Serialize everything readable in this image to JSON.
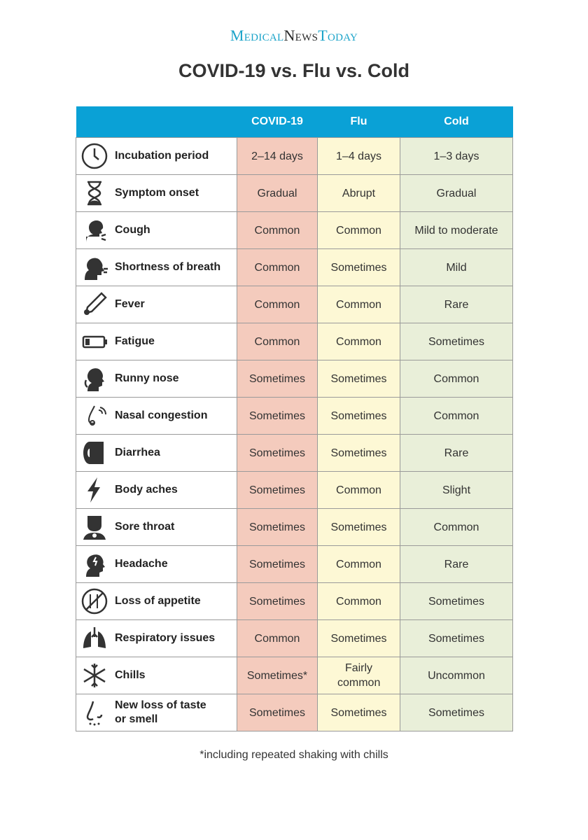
{
  "logo": {
    "part1": "Medical",
    "part2": "News",
    "part3": "Today"
  },
  "title": "COVID-19 vs. Flu vs. Cold",
  "table": {
    "headers": [
      "",
      "COVID-19",
      "Flu",
      "Cold"
    ],
    "colors": {
      "header": "#0aa1d6",
      "covid": "#f4cbbd",
      "flu": "#fdf8d5",
      "cold": "#e9efd9"
    },
    "rows": [
      {
        "icon": "clock-icon",
        "label": "Incubation period",
        "covid": "2–14 days",
        "flu": "1–4 days",
        "cold": "1–3 days"
      },
      {
        "icon": "hourglass-icon",
        "label": "Symptom onset",
        "covid": "Gradual",
        "flu": "Abrupt",
        "cold": "Gradual"
      },
      {
        "icon": "cough-icon",
        "label": "Cough",
        "covid": "Common",
        "flu": "Common",
        "cold": "Mild to moderate"
      },
      {
        "icon": "breath-icon",
        "label": "Shortness of breath",
        "covid": "Common",
        "flu": "Sometimes",
        "cold": "Mild"
      },
      {
        "icon": "thermometer-icon",
        "label": "Fever",
        "covid": "Common",
        "flu": "Common",
        "cold": "Rare"
      },
      {
        "icon": "low-battery-icon",
        "label": "Fatigue",
        "covid": "Common",
        "flu": "Common",
        "cold": "Sometimes"
      },
      {
        "icon": "runny-nose-icon",
        "label": "Runny nose",
        "covid": "Sometimes",
        "flu": "Sometimes",
        "cold": "Common"
      },
      {
        "icon": "nose-congestion-icon",
        "label": "Nasal congestion",
        "covid": "Sometimes",
        "flu": "Sometimes",
        "cold": "Common"
      },
      {
        "icon": "toilet-paper-icon",
        "label": "Diarrhea",
        "covid": "Sometimes",
        "flu": "Sometimes",
        "cold": "Rare"
      },
      {
        "icon": "lightning-icon",
        "label": "Body aches",
        "covid": "Sometimes",
        "flu": "Common",
        "cold": "Slight"
      },
      {
        "icon": "sore-throat-icon",
        "label": "Sore throat",
        "covid": "Sometimes",
        "flu": "Sometimes",
        "cold": "Common"
      },
      {
        "icon": "headache-icon",
        "label": "Headache",
        "covid": "Sometimes",
        "flu": "Common",
        "cold": "Rare"
      },
      {
        "icon": "no-food-icon",
        "label": "Loss of appetite",
        "covid": "Sometimes",
        "flu": "Common",
        "cold": "Sometimes"
      },
      {
        "icon": "lungs-icon",
        "label": "Respiratory issues",
        "covid": "Common",
        "flu": "Sometimes",
        "cold": "Sometimes"
      },
      {
        "icon": "snowflake-icon",
        "label": "Chills",
        "covid": "Sometimes*",
        "flu": "Fairly common",
        "cold": "Uncommon"
      },
      {
        "icon": "nose-icon",
        "label": "New loss of taste or smell",
        "covid": "Sometimes",
        "flu": "Sometimes",
        "cold": "Sometimes"
      }
    ]
  },
  "footnote": "*including repeated shaking with chills"
}
